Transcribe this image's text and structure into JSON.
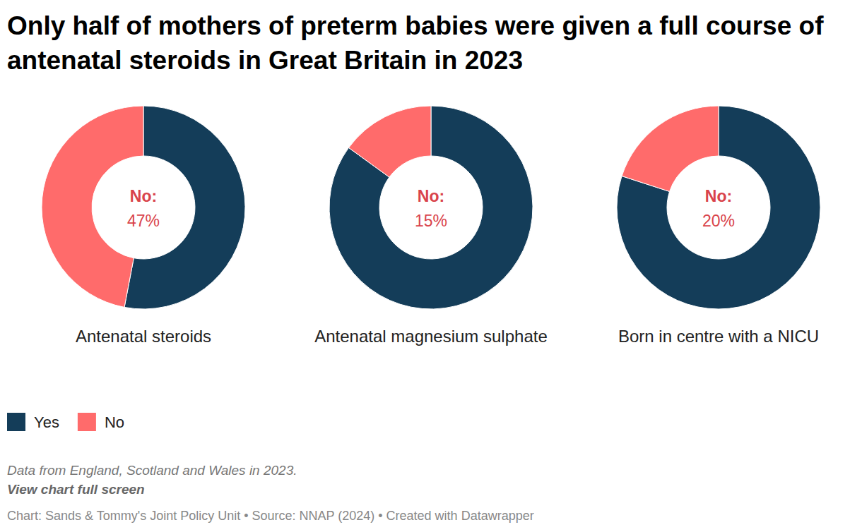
{
  "chart_data": {
    "type": "pie",
    "title": "Only half of mothers of preterm babies were given a full course of antenatal steroids in Great Britain in 2023",
    "categories": [
      "Yes",
      "No"
    ],
    "colors": [
      "#143d59",
      "#ff6b6b"
    ],
    "legend": "bottom-left",
    "center_label": "No:",
    "series": [
      {
        "name": "Antenatal steroids",
        "values": [
          53,
          47
        ],
        "value_labels": [
          null,
          "47%"
        ]
      },
      {
        "name": "Antenatal magnesium sulphate",
        "values": [
          85,
          15
        ],
        "value_labels": [
          null,
          "15%"
        ]
      },
      {
        "name": "Born in centre with a NICU",
        "values": [
          80,
          20
        ],
        "value_labels": [
          null,
          "20%"
        ]
      }
    ],
    "annotations": [
      "Data from England, Scotland and Wales in 2023.",
      "View chart full screen",
      "Chart: Sands & Tommy's Joint Policy Unit • Source: NNAP (2024) • Created with Datawrapper"
    ]
  }
}
